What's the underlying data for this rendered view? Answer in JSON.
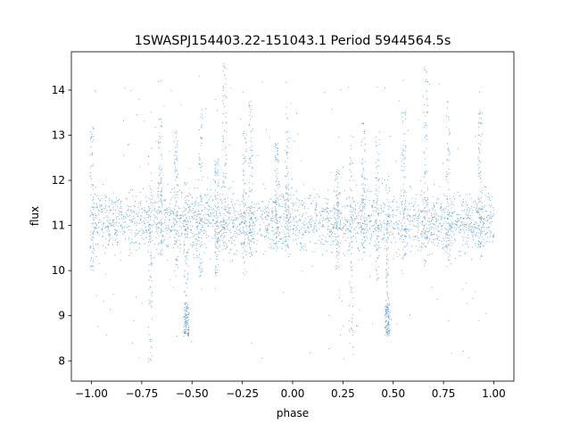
{
  "chart_data": {
    "type": "scatter",
    "title": "1SWASPJ154403.22-151043.1 Period 5944564.5s",
    "xlabel": "phase",
    "ylabel": "flux",
    "xlim": [
      -1.1,
      1.1
    ],
    "ylim": [
      7.55,
      14.85
    ],
    "xticks": [
      -1.0,
      -0.75,
      -0.5,
      -0.25,
      0.0,
      0.25,
      0.5,
      0.75,
      1.0
    ],
    "xtick_labels": [
      "−1.00",
      "−0.75",
      "−0.50",
      "−0.25",
      "0.00",
      "0.25",
      "0.50",
      "0.75",
      "1.00"
    ],
    "yticks": [
      8,
      9,
      10,
      11,
      12,
      13,
      14
    ],
    "ytick_labels": [
      "8",
      "9",
      "10",
      "11",
      "12",
      "13",
      "14"
    ],
    "grid": false,
    "legend": "none",
    "marker_color": "#1f77b4",
    "phase_range": [
      -1.0,
      1.0
    ],
    "baseline_flux": 11.1,
    "band_halfwidth": 0.6,
    "dense_point_count": 2600,
    "columns": [
      {
        "x": -1.0,
        "top": 13.2,
        "bottom": 10.0
      },
      {
        "x": -0.71,
        "top": 12.9,
        "bottom": 7.95
      },
      {
        "x": -0.66,
        "top": 13.4,
        "bottom": 10.3
      },
      {
        "x": -0.58,
        "top": 13.1,
        "bottom": 9.8
      },
      {
        "x": -0.53,
        "top": 12.0,
        "bottom": 8.6
      },
      {
        "x": -0.46,
        "top": 13.6,
        "bottom": 9.8
      },
      {
        "x": -0.38,
        "top": 12.5,
        "bottom": 9.9
      },
      {
        "x": -0.34,
        "top": 14.6,
        "bottom": 10.1
      },
      {
        "x": -0.24,
        "top": 13.1,
        "bottom": 9.9
      },
      {
        "x": -0.21,
        "top": 13.8,
        "bottom": 10.3
      },
      {
        "x": -0.08,
        "top": 12.9,
        "bottom": 10.4
      },
      {
        "x": -0.03,
        "top": 13.6,
        "bottom": 10.4
      },
      {
        "x": 0.22,
        "top": 12.3,
        "bottom": 10.0
      },
      {
        "x": 0.29,
        "top": 13.0,
        "bottom": 7.95
      },
      {
        "x": 0.35,
        "top": 13.3,
        "bottom": 10.4
      },
      {
        "x": 0.42,
        "top": 13.1,
        "bottom": 9.8
      },
      {
        "x": 0.47,
        "top": 12.1,
        "bottom": 8.6
      },
      {
        "x": 0.55,
        "top": 13.6,
        "bottom": 9.8
      },
      {
        "x": 0.66,
        "top": 14.6,
        "bottom": 10.1
      },
      {
        "x": 0.77,
        "top": 13.8,
        "bottom": 10.1
      },
      {
        "x": 0.93,
        "top": 13.6,
        "bottom": 10.2
      }
    ],
    "dips": [
      {
        "x": -0.53,
        "flux": 8.9
      },
      {
        "x": 0.47,
        "flux": 8.9
      }
    ]
  }
}
